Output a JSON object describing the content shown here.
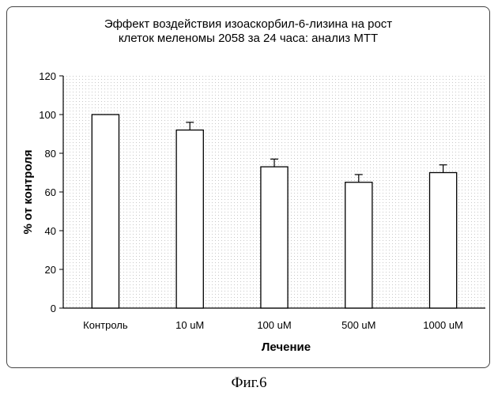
{
  "chart_data": {
    "type": "bar",
    "title_lines": [
      "Эффект воздействия изоаскорбил-6-лизина на рост",
      "клеток меленомы 2058 за 24 часа: анализ МТТ"
    ],
    "xlabel": "Лечение",
    "ylabel": "% от контроля",
    "categories": [
      "Контроль",
      "10 uM",
      "100 uM",
      "500 uM",
      "1000 uM"
    ],
    "values": [
      100,
      92,
      73,
      65,
      70
    ],
    "errors": [
      0,
      4,
      4,
      4,
      4
    ],
    "ylim": [
      0,
      120
    ],
    "yticks": [
      "0",
      "20",
      "40",
      "60",
      "80",
      "100",
      "120"
    ],
    "grid": false,
    "legend": "none",
    "bar_fill": "#ffffff",
    "bar_stroke": "#000000"
  },
  "caption": "Фиг.6"
}
